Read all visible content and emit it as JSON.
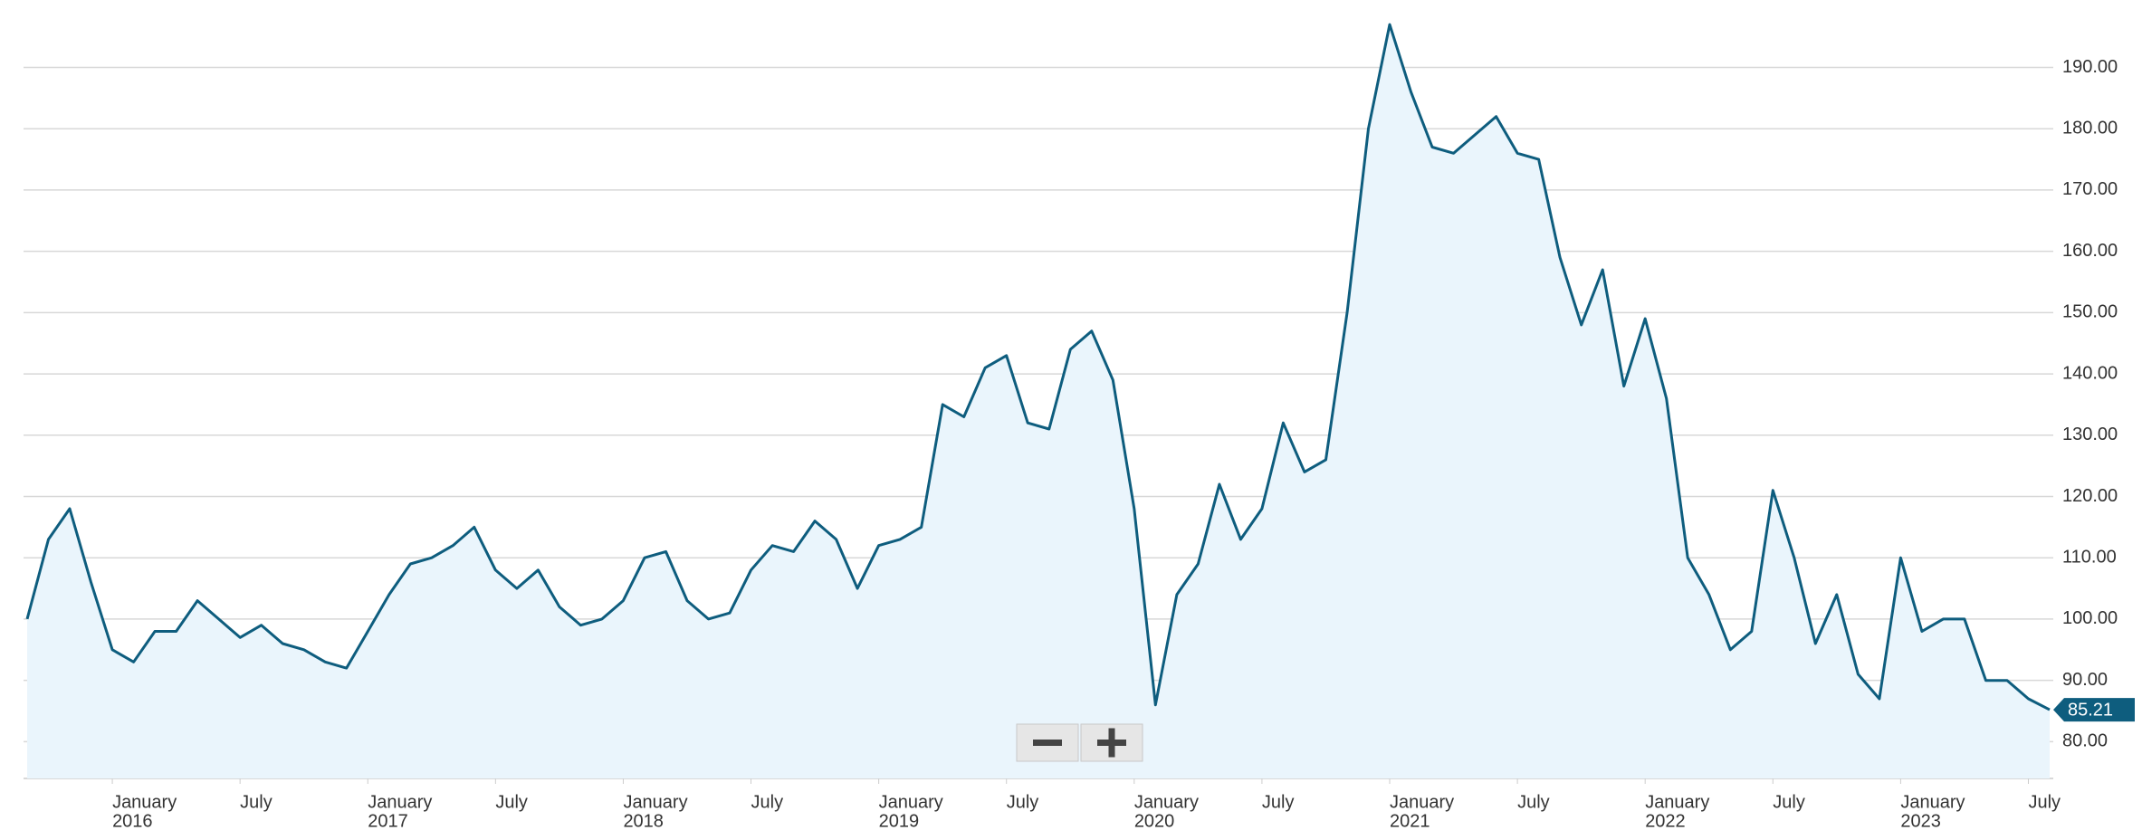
{
  "chart_data": {
    "type": "area",
    "x": [
      "2015-09",
      "2015-10",
      "2015-11",
      "2015-12",
      "2016-01",
      "2016-02",
      "2016-03",
      "2016-04",
      "2016-05",
      "2016-06",
      "2016-07",
      "2016-08",
      "2016-09",
      "2016-10",
      "2016-11",
      "2016-12",
      "2017-01",
      "2017-02",
      "2017-03",
      "2017-04",
      "2017-05",
      "2017-06",
      "2017-07",
      "2017-08",
      "2017-09",
      "2017-10",
      "2017-11",
      "2017-12",
      "2018-01",
      "2018-02",
      "2018-03",
      "2018-04",
      "2018-05",
      "2018-06",
      "2018-07",
      "2018-08",
      "2018-09",
      "2018-10",
      "2018-11",
      "2018-12",
      "2019-01",
      "2019-02",
      "2019-03",
      "2019-04",
      "2019-05",
      "2019-06",
      "2019-07",
      "2019-08",
      "2019-09",
      "2019-10",
      "2019-11",
      "2019-12",
      "2020-01",
      "2020-02",
      "2020-03",
      "2020-04",
      "2020-05",
      "2020-06",
      "2020-07",
      "2020-08",
      "2020-09",
      "2020-10",
      "2020-11",
      "2020-12",
      "2021-01",
      "2021-02",
      "2021-03",
      "2021-04",
      "2021-05",
      "2021-06",
      "2021-07",
      "2021-08",
      "2021-09",
      "2021-10",
      "2021-11",
      "2021-12",
      "2022-01",
      "2022-02",
      "2022-03",
      "2022-04",
      "2022-05",
      "2022-06",
      "2022-07",
      "2022-08",
      "2022-09",
      "2022-10",
      "2022-11",
      "2022-12",
      "2023-01",
      "2023-02",
      "2023-03",
      "2023-04",
      "2023-05",
      "2023-06",
      "2023-07",
      "2023-08"
    ],
    "series": [
      {
        "color": "#0e5d7e",
        "fill": "#eaf5fc",
        "values": [
          100,
          113,
          118,
          106,
          95,
          93,
          98,
          98,
          103,
          100,
          97,
          99,
          96,
          95,
          93,
          92,
          98,
          104,
          109,
          110,
          112,
          115,
          108,
          105,
          108,
          102,
          99,
          100,
          103,
          110,
          111,
          103,
          100,
          101,
          108,
          112,
          111,
          116,
          113,
          105,
          112,
          113,
          115,
          135,
          133,
          141,
          143,
          132,
          131,
          144,
          147,
          139,
          118,
          86,
          104,
          109,
          122,
          113,
          118,
          132,
          124,
          126,
          150,
          180,
          197,
          186,
          177,
          176,
          179,
          182,
          176,
          175,
          159,
          148,
          157,
          138,
          149,
          136,
          110,
          104,
          95,
          98,
          121,
          110,
          96,
          104,
          91,
          87,
          110,
          98,
          100,
          100,
          90,
          90,
          87,
          85.21
        ]
      }
    ],
    "current_value": 85.21,
    "xlim": [
      "2015-09",
      "2023-08"
    ],
    "ylim": [
      74,
      201
    ],
    "yticks": [
      {
        "value": 80,
        "label": "80.00"
      },
      {
        "value": 90,
        "label": "90.00"
      },
      {
        "value": 100,
        "label": "100.00"
      },
      {
        "value": 110,
        "label": "110.00"
      },
      {
        "value": 120,
        "label": "120.00"
      },
      {
        "value": 130,
        "label": "130.00"
      },
      {
        "value": 140,
        "label": "140.00"
      },
      {
        "value": 150,
        "label": "150.00"
      },
      {
        "value": 160,
        "label": "160.00"
      },
      {
        "value": 170,
        "label": "170.00"
      },
      {
        "value": 180,
        "label": "180.00"
      },
      {
        "value": 190,
        "label": "190.00"
      }
    ],
    "xticks": [
      {
        "value": "2016-01",
        "label": [
          "January",
          "2016"
        ]
      },
      {
        "value": "2016-07",
        "label": "July"
      },
      {
        "value": "2017-01",
        "label": [
          "January",
          "2017"
        ]
      },
      {
        "value": "2017-07",
        "label": "July"
      },
      {
        "value": "2018-01",
        "label": [
          "January",
          "2018"
        ]
      },
      {
        "value": "2018-07",
        "label": "July"
      },
      {
        "value": "2019-01",
        "label": [
          "January",
          "2019"
        ]
      },
      {
        "value": "2019-07",
        "label": "July"
      },
      {
        "value": "2020-01",
        "label": [
          "January",
          "2020"
        ]
      },
      {
        "value": "2020-07",
        "label": "July"
      },
      {
        "value": "2021-01",
        "label": [
          "January",
          "2021"
        ]
      },
      {
        "value": "2021-07",
        "label": "July"
      },
      {
        "value": "2022-01",
        "label": [
          "January",
          "2022"
        ]
      },
      {
        "value": "2022-07",
        "label": "July"
      },
      {
        "value": "2023-01",
        "label": [
          "January",
          "2023"
        ]
      },
      {
        "value": "2023-07",
        "label": "July"
      }
    ],
    "grid": true
  }
}
